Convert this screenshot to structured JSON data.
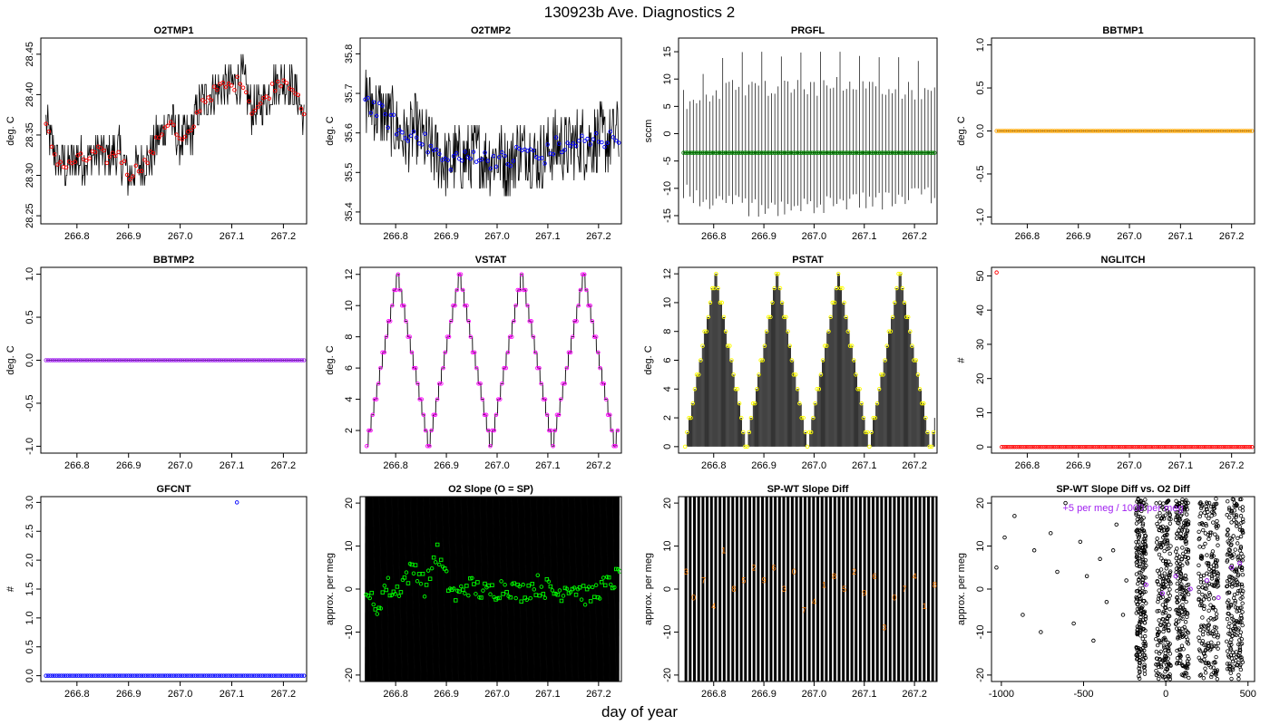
{
  "figure": {
    "title": "130923b   Ave. Diagnostics 2",
    "xlabel": "day of year"
  },
  "panels": [
    {
      "title": "O2TMP1",
      "ylabel": "deg. C",
      "xticks": [
        "266.8",
        "266.9",
        "267.0",
        "267.1",
        "267.2"
      ],
      "yticks": [
        "28.25",
        "28.30",
        "28.35",
        "28.40",
        "28.45"
      ]
    },
    {
      "title": "O2TMP2",
      "ylabel": "deg. C",
      "xticks": [
        "266.8",
        "266.9",
        "267.0",
        "267.1",
        "267.2"
      ],
      "yticks": [
        "35.4",
        "35.5",
        "35.6",
        "35.7",
        "35.8"
      ]
    },
    {
      "title": "PRGFL",
      "ylabel": "sccm",
      "xticks": [
        "266.8",
        "266.9",
        "267.0",
        "267.1",
        "267.2"
      ],
      "yticks": [
        "-15",
        "-10",
        "-5",
        "0",
        "5",
        "10",
        "15"
      ]
    },
    {
      "title": "BBTMP1",
      "ylabel": "deg. C",
      "xticks": [
        "266.8",
        "266.9",
        "267.0",
        "267.1",
        "267.2"
      ],
      "yticks": [
        "-1.0",
        "-0.5",
        "0.0",
        "0.5",
        "1.0"
      ]
    },
    {
      "title": "BBTMP2",
      "ylabel": "deg. C",
      "xticks": [
        "266.8",
        "266.9",
        "267.0",
        "267.1",
        "267.2"
      ],
      "yticks": [
        "-1.0",
        "-0.5",
        "0.0",
        "0.5",
        "1.0"
      ]
    },
    {
      "title": "VSTAT",
      "ylabel": "deg. C",
      "xticks": [
        "266.8",
        "266.9",
        "267.0",
        "267.1",
        "267.2"
      ],
      "yticks": [
        "2",
        "4",
        "6",
        "8",
        "10",
        "12"
      ]
    },
    {
      "title": "PSTAT",
      "ylabel": "deg. C",
      "xticks": [
        "266.8",
        "266.9",
        "267.0",
        "267.1",
        "267.2"
      ],
      "yticks": [
        "0",
        "2",
        "4",
        "6",
        "8",
        "10",
        "12"
      ]
    },
    {
      "title": "NGLITCH",
      "ylabel": "#",
      "xticks": [
        "266.8",
        "266.9",
        "267.0",
        "267.1",
        "267.2"
      ],
      "yticks": [
        "0",
        "10",
        "20",
        "30",
        "40",
        "50"
      ]
    },
    {
      "title": "GFCNT",
      "ylabel": "#",
      "xticks": [
        "266.8",
        "266.9",
        "267.0",
        "267.1",
        "267.2"
      ],
      "yticks": [
        "0.0",
        "0.5",
        "1.0",
        "1.5",
        "2.0",
        "2.5",
        "3.0"
      ]
    },
    {
      "title": "O2 Slope (O = SP)",
      "ylabel": "approx. per meg",
      "xticks": [
        "266.8",
        "266.9",
        "267.0",
        "267.1",
        "267.2"
      ],
      "yticks": [
        "-20",
        "-10",
        "0",
        "10",
        "20"
      ]
    },
    {
      "title": "SP-WT Slope Diff",
      "ylabel": "approx. per meg",
      "xticks": [
        "266.8",
        "266.9",
        "267.0",
        "267.1",
        "267.2"
      ],
      "yticks": [
        "-20",
        "-10",
        "0",
        "10",
        "20"
      ]
    },
    {
      "title": "SP-WT Slope Diff vs. O2 Diff",
      "ylabel": "approx. per meg",
      "xticks": [
        "-1000",
        "-500",
        "0",
        "500"
      ],
      "yticks": [
        "-20",
        "-10",
        "0",
        "10",
        "20"
      ],
      "annotation": "+5 per meg / 1000 per meg"
    }
  ],
  "chart_data": [
    {
      "type": "line",
      "title": "O2TMP1",
      "ylabel": "deg. C",
      "xlim": [
        266.73,
        267.245
      ],
      "ylim": [
        28.24,
        28.47
      ],
      "series": [
        {
          "color": "#000000",
          "x": [
            266.74,
            266.76,
            266.78,
            266.8,
            266.82,
            266.84,
            266.86,
            266.88,
            266.9,
            266.92,
            266.94,
            266.96,
            266.98,
            267.0,
            267.02,
            267.04,
            267.06,
            267.08,
            267.1,
            267.12,
            267.14,
            267.16,
            267.18,
            267.2,
            267.22,
            267.24
          ],
          "y": [
            28.36,
            28.32,
            28.31,
            28.32,
            28.32,
            28.33,
            28.32,
            28.33,
            28.3,
            28.31,
            28.32,
            28.35,
            28.37,
            28.34,
            28.35,
            28.39,
            28.4,
            28.41,
            28.41,
            28.42,
            28.38,
            28.39,
            28.41,
            28.42,
            28.41,
            28.37
          ]
        },
        {
          "color": "#ff0000",
          "marker": "circle",
          "x": [
            266.74,
            266.76,
            266.78,
            266.8,
            266.82,
            266.84,
            266.86,
            266.88,
            266.9,
            266.92,
            266.94,
            266.96,
            266.98,
            267.0,
            267.02,
            267.04,
            267.06,
            267.08,
            267.1,
            267.12,
            267.14,
            267.16,
            267.18,
            267.2,
            267.22,
            267.24
          ],
          "y": [
            28.36,
            28.32,
            28.31,
            28.32,
            28.32,
            28.33,
            28.32,
            28.33,
            28.3,
            28.31,
            28.32,
            28.35,
            28.37,
            28.34,
            28.35,
            28.39,
            28.4,
            28.41,
            28.41,
            28.42,
            28.38,
            28.39,
            28.41,
            28.42,
            28.41,
            28.37
          ]
        }
      ]
    },
    {
      "type": "line",
      "title": "O2TMP2",
      "ylabel": "deg. C",
      "xlim": [
        266.73,
        267.245
      ],
      "ylim": [
        35.37,
        35.84
      ],
      "series": [
        {
          "color": "#000000",
          "x": [
            266.74,
            266.76,
            266.78,
            266.8,
            266.82,
            266.84,
            266.86,
            266.88,
            266.9,
            266.92,
            266.94,
            266.96,
            266.98,
            267.0,
            267.02,
            267.04,
            267.06,
            267.08,
            267.1,
            267.12,
            267.14,
            267.16,
            267.18,
            267.2,
            267.22,
            267.24
          ],
          "y": [
            35.69,
            35.66,
            35.64,
            35.62,
            35.58,
            35.61,
            35.57,
            35.55,
            35.52,
            35.54,
            35.53,
            35.55,
            35.53,
            35.54,
            35.52,
            35.55,
            35.56,
            35.53,
            35.55,
            35.57,
            35.56,
            35.58,
            35.57,
            35.59,
            35.58,
            35.6
          ]
        },
        {
          "color": "#0000ff",
          "marker": "circle",
          "x": [
            266.74,
            266.76,
            266.78,
            266.8,
            266.82,
            266.84,
            266.86,
            266.88,
            266.9,
            266.92,
            266.94,
            266.96,
            266.98,
            267.0,
            267.02,
            267.04,
            267.06,
            267.08,
            267.1,
            267.12,
            267.14,
            267.16,
            267.18,
            267.2,
            267.22,
            267.24
          ],
          "y": [
            35.69,
            35.66,
            35.64,
            35.62,
            35.58,
            35.61,
            35.57,
            35.55,
            35.52,
            35.54,
            35.53,
            35.55,
            35.53,
            35.54,
            35.52,
            35.55,
            35.56,
            35.53,
            35.55,
            35.57,
            35.56,
            35.58,
            35.57,
            35.59,
            35.58,
            35.6
          ]
        }
      ]
    },
    {
      "type": "line",
      "title": "PRGFL",
      "ylabel": "sccm",
      "xlim": [
        266.73,
        267.245
      ],
      "ylim": [
        -16.5,
        17.5
      ],
      "series": [
        {
          "color": "#000000",
          "name": "",
          "x": [
            266.74,
            266.78,
            266.82,
            266.86,
            266.9,
            266.94,
            266.98,
            267.02,
            267.06,
            267.1,
            267.14,
            267.18,
            267.22
          ],
          "y": [
            8,
            11,
            14,
            15,
            15,
            14,
            15,
            15,
            15,
            14,
            14,
            14,
            13
          ]
        },
        {
          "color": "#000000",
          "x": [
            266.74,
            266.78,
            266.82,
            266.86,
            266.9,
            266.94,
            266.98,
            267.02,
            267.06,
            267.1,
            267.14,
            267.18,
            267.22
          ],
          "y": [
            -12,
            -14,
            -15,
            -15,
            -16,
            -15,
            -15,
            -15,
            -14,
            -14,
            -14,
            -13,
            -13
          ]
        },
        {
          "color": "#008000",
          "marker": "circle",
          "x": [
            266.74,
            267.24
          ],
          "y": [
            -3.5,
            -3.5
          ]
        }
      ]
    },
    {
      "type": "scatter",
      "title": "BBTMP1",
      "ylabel": "deg. C",
      "xlim": [
        266.73,
        267.245
      ],
      "ylim": [
        -1.08,
        1.08
      ],
      "series": [
        {
          "color": "#ffa500",
          "x": [
            266.74,
            267.24
          ],
          "y": [
            0.0,
            0.0
          ]
        }
      ]
    },
    {
      "type": "scatter",
      "title": "BBTMP2",
      "ylabel": "deg. C",
      "xlim": [
        266.73,
        267.245
      ],
      "ylim": [
        -1.08,
        1.08
      ],
      "series": [
        {
          "color": "#a020f0",
          "x": [
            266.74,
            267.24
          ],
          "y": [
            0.0,
            0.0
          ]
        }
      ]
    },
    {
      "type": "line",
      "title": "VSTAT",
      "ylabel": "deg. C",
      "xlim": [
        266.73,
        267.245
      ],
      "ylim": [
        0.55,
        12.45
      ],
      "series": [
        {
          "color": "#ff00ff",
          "cycle_days": 0.1222,
          "cycle_start": 266.743,
          "min": 1,
          "max": 12
        }
      ]
    },
    {
      "type": "line",
      "title": "PSTAT",
      "ylabel": "deg. C",
      "xlim": [
        266.73,
        267.245
      ],
      "ylim": [
        -0.45,
        12.45
      ],
      "series": [
        {
          "color": "#ffff00",
          "cycle_days": 0.1222,
          "cycle_start": 266.743,
          "min": 0,
          "max": 12
        }
      ]
    },
    {
      "type": "scatter",
      "title": "NGLITCH",
      "ylabel": "#",
      "xlim": [
        266.73,
        267.245
      ],
      "ylim": [
        -1.8,
        52.5
      ],
      "series": [
        {
          "color": "#ff0000",
          "x": [
            266.74
          ],
          "y": [
            51
          ]
        },
        {
          "color": "#ff0000",
          "x": [
            266.75,
            267.24
          ],
          "y": [
            0,
            0
          ]
        }
      ]
    },
    {
      "type": "scatter",
      "title": "GFCNT",
      "ylabel": "#",
      "xlim": [
        266.73,
        267.245
      ],
      "ylim": [
        -0.1,
        3.1
      ],
      "series": [
        {
          "color": "#0000ff",
          "x": [
            266.74,
            267.24
          ],
          "y": [
            0,
            0
          ]
        },
        {
          "color": "#0000ff",
          "x": [
            267.11
          ],
          "y": [
            3
          ]
        }
      ]
    },
    {
      "type": "scatter",
      "title": "O2 Slope (O = SP)",
      "ylabel": "approx. per meg",
      "xlim": [
        266.73,
        267.245
      ],
      "ylim": [
        -21.5,
        21.5
      ],
      "series": [
        {
          "color": "#00ff00",
          "marker": "circle_square",
          "x": [
            266.74,
            266.76,
            266.78,
            266.8,
            266.82,
            266.84,
            266.86,
            266.88,
            266.9,
            266.92,
            266.94,
            266.96,
            266.98,
            267.0,
            267.02,
            267.04,
            267.06,
            267.08,
            267.1,
            267.12,
            267.14,
            267.16,
            267.18,
            267.2,
            267.22,
            267.24
          ],
          "y": [
            2,
            -6,
            1,
            -1,
            3,
            5,
            0,
            9,
            2,
            -2,
            1,
            0,
            -1,
            0,
            1,
            -1,
            0,
            1,
            0,
            -1,
            1,
            0,
            -2,
            0,
            1,
            3
          ]
        }
      ]
    },
    {
      "type": "scatter",
      "title": "SP-WT Slope Diff",
      "ylabel": "approx. per meg",
      "xlim": [
        266.73,
        267.245
      ],
      "ylim": [
        -21.5,
        21.5
      ],
      "series": [
        {
          "color": "#ff7f00",
          "marker": "digit",
          "x": [
            266.745,
            266.76,
            266.78,
            266.8,
            266.82,
            266.84,
            266.86,
            266.88,
            266.9,
            266.92,
            266.94,
            266.96,
            266.98,
            267.0,
            267.02,
            267.04,
            267.06,
            267.08,
            267.1,
            267.12,
            267.14,
            267.16,
            267.18,
            267.2,
            267.22,
            267.24
          ],
          "y": [
            4,
            -2,
            2,
            -4,
            9,
            0,
            2,
            5,
            2,
            5,
            0,
            4,
            -5,
            -3,
            1,
            3,
            0,
            4,
            -1,
            3,
            -9,
            -2,
            0,
            3,
            -4,
            1
          ]
        }
      ]
    },
    {
      "type": "scatter",
      "title": "SP-WT Slope Diff vs. O2 Diff",
      "ylabel": "approx. per meg",
      "xlim": [
        -1060,
        540
      ],
      "ylim": [
        -21.5,
        21.5
      ],
      "series": [
        {
          "color": "#000000",
          "marker": "circle",
          "x": [
            -1030,
            -980,
            -920,
            -870,
            -800,
            -760,
            -700,
            -660,
            -610,
            -560,
            -520,
            -480,
            -440,
            -400,
            -360,
            -320,
            -300,
            -260,
            -240
          ],
          "y": [
            5,
            12,
            17,
            -6,
            9,
            -10,
            13,
            4,
            20,
            -8,
            11,
            3,
            -12,
            7,
            -3,
            9,
            15,
            -6,
            2
          ]
        },
        {
          "color": "#a020f0",
          "marker": "circle",
          "x": [
            -120,
            -20,
            60,
            150,
            250,
            320,
            400,
            450
          ],
          "y": [
            1,
            -1,
            3,
            0,
            2,
            -2,
            5,
            6
          ]
        }
      ]
    }
  ]
}
